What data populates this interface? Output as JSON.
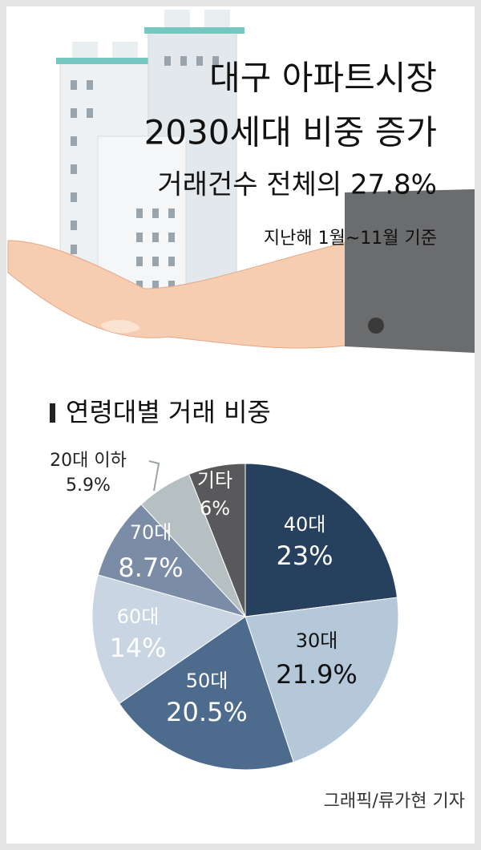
{
  "header": {
    "headline": [
      "대구 아파트시장",
      "2030세대 비중 증가",
      "거래건수 전체의 27.8%"
    ],
    "subtitle": "지난해 1월~11월 기준"
  },
  "chart_data": {
    "type": "pie",
    "title": "연령대별 거래 비중",
    "categories": [
      "40대",
      "30대",
      "50대",
      "60대",
      "70대",
      "20대 이하",
      "기타"
    ],
    "values": [
      23,
      21.9,
      20.5,
      14,
      8.7,
      5.9,
      6
    ],
    "value_labels": [
      "23%",
      "21.9%",
      "20.5%",
      "14%",
      "8.7%",
      "5.9%",
      "6%"
    ],
    "colors": [
      "#27405e",
      "#b4c8da",
      "#4d6b8c",
      "#c9d5e2",
      "#7a8ca6",
      "#b6c0c2",
      "#59585a"
    ]
  },
  "credit": "그래픽/류가현 기자"
}
